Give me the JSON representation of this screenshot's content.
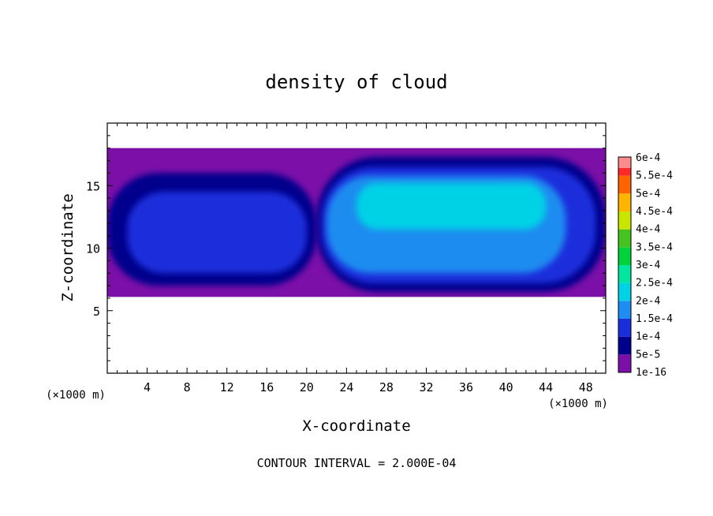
{
  "chart_data": {
    "type": "heatmap",
    "title": "density of cloud",
    "xlabel": "X-coordinate",
    "ylabel": "Z-coordinate",
    "x_unit": "(×1000 m)",
    "y_unit": "(×1000 m)",
    "xlim": [
      0,
      50
    ],
    "ylim": [
      0,
      20
    ],
    "x_ticks": [
      4,
      8,
      12,
      16,
      20,
      24,
      28,
      32,
      36,
      40,
      44,
      48
    ],
    "y_ticks": [
      5,
      10,
      15
    ],
    "contour_interval_label": "CONTOUR INTERVAL = 2.000E-04",
    "colorbar": {
      "levels": [
        {
          "label": "1e-16",
          "color": "#7b0fa8"
        },
        {
          "label": "5e-5",
          "color": "#00008c"
        },
        {
          "label": "1e-4",
          "color": "#1a2edc"
        },
        {
          "label": "1.5e-4",
          "color": "#1e8cf0"
        },
        {
          "label": "2e-4",
          "color": "#00d2e6"
        },
        {
          "label": "2.5e-4",
          "color": "#00e6a0"
        },
        {
          "label": "3e-4",
          "color": "#00d23c"
        },
        {
          "label": "3.5e-4",
          "color": "#46c31e"
        },
        {
          "label": "4e-4",
          "color": "#c8e600"
        },
        {
          "label": "4.5e-4",
          "color": "#ffb400"
        },
        {
          "label": "5e-4",
          "color": "#ff6400"
        },
        {
          "label": "5.5e-4",
          "color": "#ff2828"
        },
        {
          "label": "6e-4",
          "color": "#ff8c8c"
        }
      ]
    },
    "field_regions": [
      {
        "level": "1e-16",
        "x": [
          0,
          50
        ],
        "z": [
          6.1,
          18.0
        ]
      },
      {
        "level": "5e-5",
        "x": [
          0,
          21
        ],
        "z": [
          7.0,
          16.0
        ]
      },
      {
        "level": "1e-4",
        "x": [
          2,
          20
        ],
        "z": [
          8.0,
          14.5
        ]
      },
      {
        "level": "5e-5",
        "x": [
          21,
          50
        ],
        "z": [
          6.5,
          17.3
        ]
      },
      {
        "level": "1e-4",
        "x": [
          21.5,
          49
        ],
        "z": [
          7.2,
          16.5
        ]
      },
      {
        "level": "1.5e-4",
        "x": [
          22,
          46
        ],
        "z": [
          8.0,
          15.8
        ]
      },
      {
        "level": "2e-4",
        "x": [
          25,
          44
        ],
        "z": [
          11.5,
          15.2
        ]
      }
    ]
  }
}
